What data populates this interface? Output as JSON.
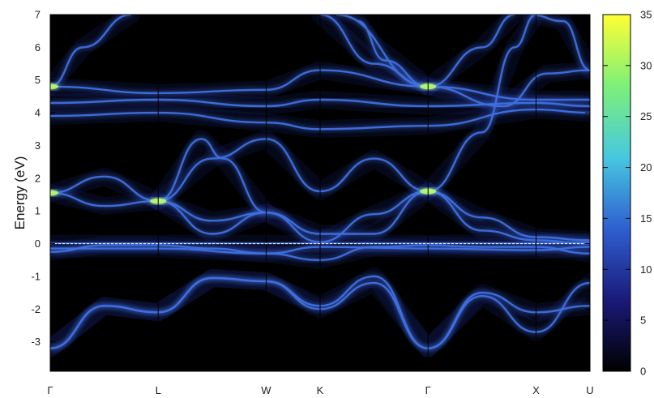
{
  "chart_data": {
    "type": "heatmap",
    "title": "",
    "xlabel": "",
    "ylabel": "Energy (eV)",
    "ylim": [
      -3.9,
      7
    ],
    "y_ticks": [
      -3,
      -2,
      -1,
      0,
      1,
      2,
      3,
      4,
      5,
      6,
      7
    ],
    "x_ticks": [
      {
        "label": "Γ",
        "x": 0
      },
      {
        "label": "L",
        "x": 1
      },
      {
        "label": "W",
        "x": 2
      },
      {
        "label": "K",
        "x": 2.5
      },
      {
        "label": "Γ",
        "x": 3.5
      },
      {
        "label": "X",
        "x": 4.5
      },
      {
        "label": "U",
        "x": 5
      }
    ],
    "fermi_level": 0,
    "colorbar": {
      "min": 0,
      "max": 35,
      "ticks": [
        0,
        5,
        10,
        15,
        20,
        25,
        30,
        35
      ],
      "colors": [
        "#000000",
        "#1a1a7a",
        "#2f5fd0",
        "#47c8e0",
        "#7df078",
        "#ffff33"
      ]
    },
    "bands": [
      {
        "points": [
          [
            0,
            -3.2
          ],
          [
            0.5,
            -1.9
          ],
          [
            1,
            -2.1
          ],
          [
            1.5,
            -1.05
          ],
          [
            2,
            -1.15
          ],
          [
            2.5,
            -2.0
          ],
          [
            3,
            -1.2
          ],
          [
            3.5,
            -3.2
          ],
          [
            4,
            -1.6
          ],
          [
            4.5,
            -2.7
          ],
          [
            5,
            -1.2
          ]
        ]
      },
      {
        "points": [
          [
            0,
            -3.2
          ],
          [
            0.5,
            -1.9
          ],
          [
            1,
            -2.1
          ],
          [
            1.5,
            -1.05
          ],
          [
            2,
            -1.15
          ],
          [
            2.5,
            -1.9
          ],
          [
            3,
            -1.0
          ],
          [
            3.5,
            -3.2
          ],
          [
            4,
            -1.5
          ],
          [
            4.5,
            -2.1
          ],
          [
            5,
            -1.9
          ]
        ]
      },
      {
        "points": [
          [
            0,
            -0.25
          ],
          [
            0.5,
            -0.05
          ],
          [
            1,
            -0.05
          ],
          [
            1.5,
            -0.15
          ],
          [
            2,
            -0.3
          ],
          [
            2.5,
            -0.5
          ],
          [
            3,
            -0.1
          ],
          [
            3.5,
            -0.05
          ],
          [
            4,
            -0.1
          ],
          [
            4.5,
            -0.1
          ],
          [
            5,
            -0.3
          ]
        ]
      },
      {
        "points": [
          [
            0,
            -0.15
          ],
          [
            1,
            -0.15
          ],
          [
            2,
            -0.3
          ],
          [
            2.5,
            -0.1
          ],
          [
            3.5,
            -0.15
          ],
          [
            4.5,
            -0.2
          ],
          [
            5,
            -0.1
          ]
        ]
      },
      {
        "points": [
          [
            0,
            0.0
          ],
          [
            1,
            0.0
          ],
          [
            2,
            0.0
          ],
          [
            2.5,
            0.0
          ],
          [
            3.5,
            0.0
          ],
          [
            4.5,
            0.0
          ],
          [
            5,
            0.05
          ]
        ]
      },
      {
        "points": [
          [
            0,
            1.55
          ],
          [
            0.5,
            2.05
          ],
          [
            1,
            1.3
          ],
          [
            1.5,
            0.3
          ],
          [
            2,
            0.95
          ],
          [
            2.5,
            0.05
          ],
          [
            3,
            0.9
          ],
          [
            3.5,
            1.6
          ],
          [
            4,
            0.4
          ],
          [
            4.5,
            0.1
          ],
          [
            5,
            0.0
          ]
        ]
      },
      {
        "points": [
          [
            0,
            1.55
          ],
          [
            0.5,
            1.15
          ],
          [
            1,
            1.3
          ],
          [
            1.5,
            0.7
          ],
          [
            2,
            0.95
          ],
          [
            2.5,
            0.3
          ],
          [
            3,
            0.3
          ],
          [
            3.5,
            1.6
          ],
          [
            4,
            0.8
          ],
          [
            4.5,
            0.2
          ],
          [
            5,
            0.1
          ]
        ]
      },
      {
        "points": [
          [
            0,
            4.8
          ],
          [
            0.3,
            6.0
          ],
          [
            0.75,
            7.0
          ]
        ]
      },
      {
        "points": [
          [
            1,
            1.3
          ],
          [
            1.4,
            3.2
          ],
          [
            1.6,
            2.6
          ],
          [
            2,
            0.95
          ]
        ]
      },
      {
        "points": [
          [
            1,
            1.3
          ],
          [
            1.5,
            2.6
          ],
          [
            2,
            3.2
          ],
          [
            2.5,
            1.6
          ],
          [
            3,
            2.6
          ],
          [
            3.5,
            1.6
          ]
        ]
      },
      {
        "points": [
          [
            2.5,
            7.0
          ],
          [
            3.0,
            5.5
          ],
          [
            3.5,
            4.8
          ],
          [
            4.0,
            6.0
          ],
          [
            4.3,
            7.0
          ]
        ]
      },
      {
        "points": [
          [
            2.65,
            7.0
          ],
          [
            3.5,
            4.8
          ],
          [
            3.1,
            5.6
          ],
          [
            2.85,
            6.8
          ]
        ]
      },
      {
        "points": [
          [
            3.5,
            1.6
          ],
          [
            4.0,
            3.4
          ],
          [
            4.3,
            6.0
          ],
          [
            4.5,
            7.0
          ]
        ]
      },
      {
        "points": [
          [
            3.5,
            4.8
          ],
          [
            4.2,
            4.2
          ],
          [
            4.6,
            5.2
          ],
          [
            5,
            5.3
          ]
        ]
      },
      {
        "points": [
          [
            4.45,
            7.0
          ],
          [
            4.75,
            6.8
          ],
          [
            5,
            5.3
          ]
        ]
      },
      {
        "points": [
          [
            0,
            4.8
          ],
          [
            1,
            4.6
          ],
          [
            2,
            4.7
          ],
          [
            2.5,
            5.3
          ],
          [
            3.5,
            4.8
          ],
          [
            4.5,
            4.4
          ],
          [
            5,
            4.4
          ]
        ]
      },
      {
        "points": [
          [
            0,
            4.3
          ],
          [
            1,
            4.4
          ],
          [
            2,
            4.2
          ],
          [
            2.5,
            4.4
          ],
          [
            3.5,
            4.2
          ],
          [
            4.5,
            4.3
          ],
          [
            5,
            4.2
          ]
        ]
      },
      {
        "points": [
          [
            0,
            3.9
          ],
          [
            1,
            4.0
          ],
          [
            2,
            3.7
          ],
          [
            2.5,
            3.5
          ],
          [
            3.5,
            3.6
          ],
          [
            4.5,
            4.1
          ],
          [
            5,
            4.0
          ]
        ]
      }
    ]
  }
}
